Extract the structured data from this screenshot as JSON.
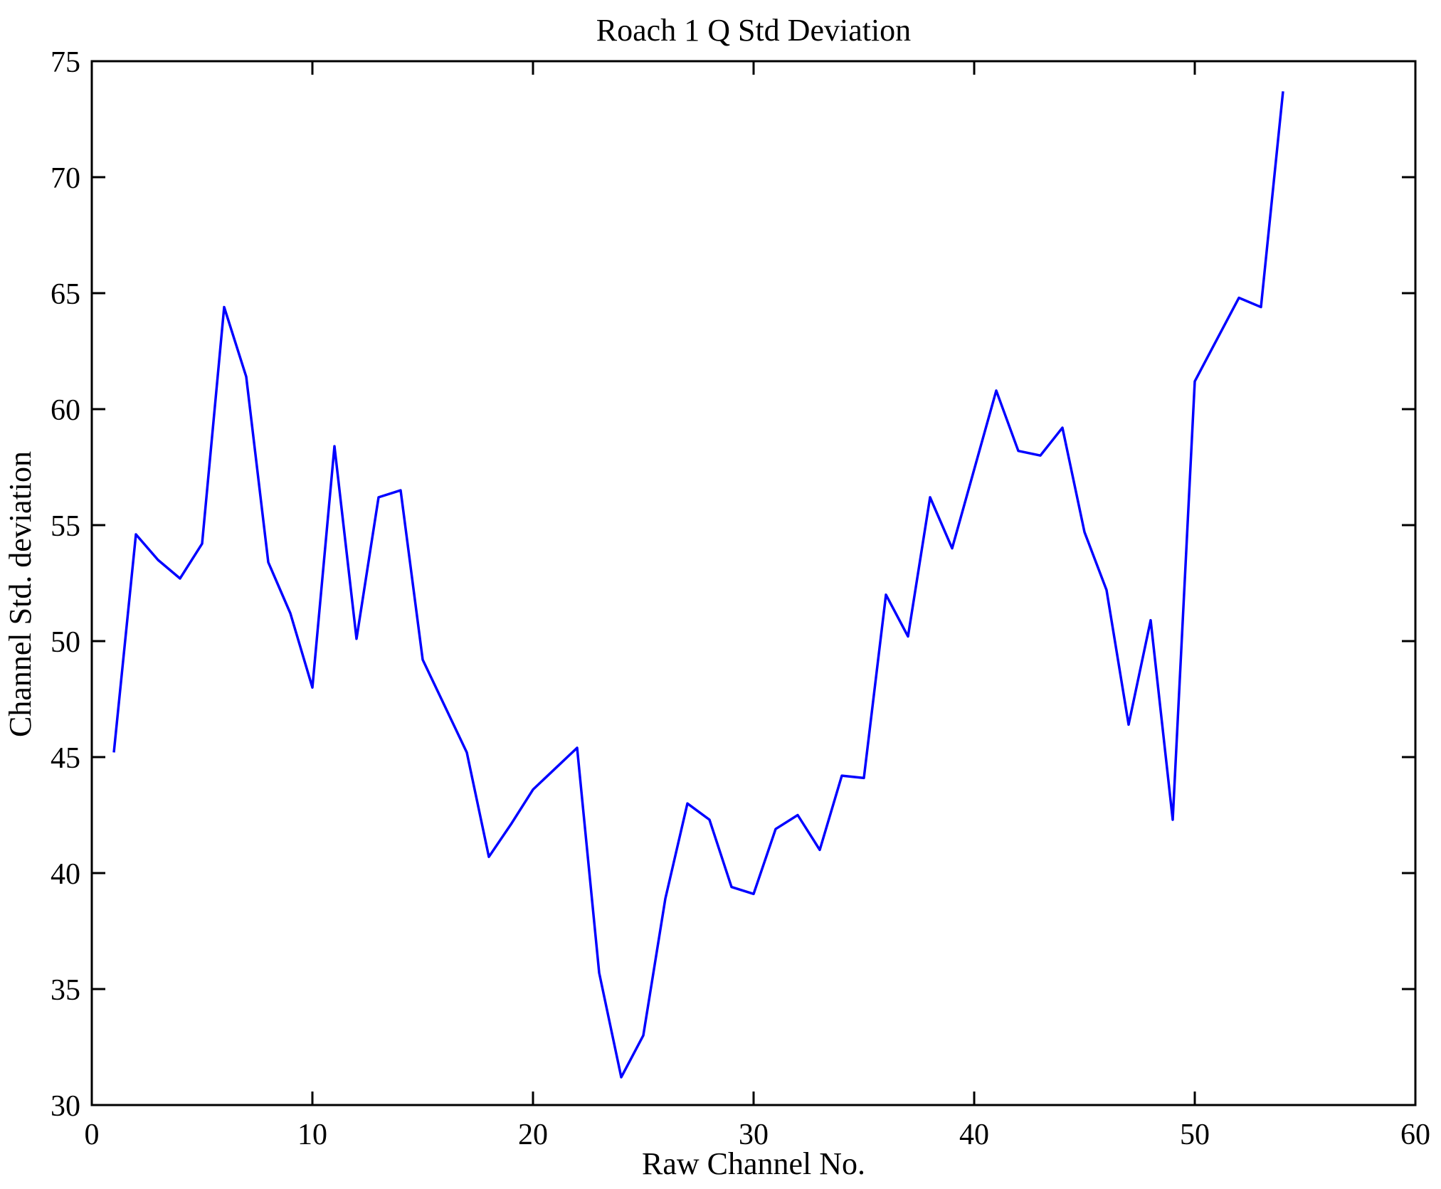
{
  "figure": {
    "background": "#ffffff"
  },
  "chart_data": {
    "type": "line",
    "title": "Roach 1 Q Std Deviation",
    "xlabel": "Raw Channel No.",
    "ylabel": "Channel Std. deviation",
    "xlim": [
      0,
      60
    ],
    "ylim": [
      30,
      75
    ],
    "x_ticks": [
      0,
      10,
      20,
      30,
      40,
      50,
      60
    ],
    "y_ticks": [
      30,
      35,
      40,
      45,
      50,
      55,
      60,
      65,
      70,
      75
    ],
    "grid": false,
    "legend_position": "none",
    "line_color": "#0000FF",
    "axis_color": "#000000",
    "series": [
      {
        "x": [
          1,
          2,
          3,
          4,
          5,
          6,
          7,
          8,
          9,
          10,
          11,
          12,
          13,
          14,
          15,
          16,
          17,
          18,
          19,
          20,
          21,
          22,
          23,
          24,
          25,
          26,
          27,
          28,
          29,
          30,
          31,
          32,
          33,
          34,
          35,
          36,
          37,
          38,
          39,
          40,
          41,
          42,
          43,
          44,
          45,
          46,
          47,
          48,
          49,
          50,
          51,
          52,
          53,
          54
        ],
        "y": [
          45.2,
          54.6,
          53.5,
          52.7,
          54.2,
          64.4,
          61.4,
          53.4,
          51.2,
          48.0,
          58.4,
          50.1,
          56.2,
          56.5,
          49.2,
          47.2,
          45.2,
          40.7,
          42.1,
          43.6,
          44.5,
          45.4,
          35.7,
          31.2,
          33.0,
          38.9,
          43.0,
          42.3,
          39.4,
          39.1,
          41.9,
          42.5,
          41.0,
          44.2,
          44.1,
          52.0,
          50.2,
          56.2,
          54.0,
          57.4,
          60.8,
          58.2,
          58.0,
          59.2,
          54.7,
          52.2,
          46.4,
          50.9,
          42.3,
          61.2,
          63.0,
          64.8,
          64.4,
          73.7
        ]
      }
    ]
  }
}
